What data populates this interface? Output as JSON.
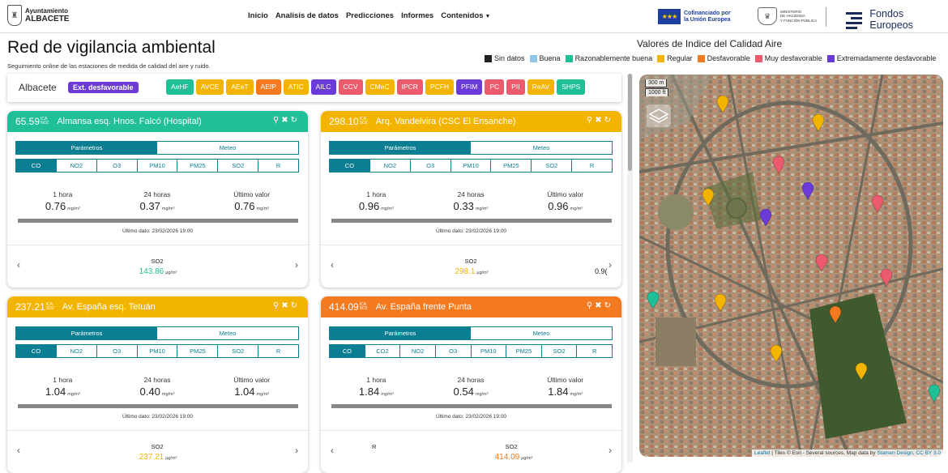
{
  "brand": {
    "line1": "Ayuntamiento",
    "line2": "ALBACETE"
  },
  "nav": [
    "Inicio",
    "Analisis de datos",
    "Predicciones",
    "Informes",
    "Contenidos"
  ],
  "eu": {
    "line1": "Cofinanciado por",
    "line2": "la Unión Europea"
  },
  "ministry": {
    "line1": "MINISTERIO",
    "line2": "DE HACIENDA",
    "line3": "Y FUNCIÓN PÚBLICA"
  },
  "fondos": "Fondos Europeos",
  "page": {
    "title": "Red de vigilancia ambiental",
    "subtitle": "Seguimiento online de las estaciones de medida de calidad del aire y ruido."
  },
  "legend": {
    "title": "Valores de Indice del Calidad Aire",
    "items": [
      {
        "label": "Sin datos",
        "color": "#222222"
      },
      {
        "label": "Buena",
        "color": "#8fc6e8"
      },
      {
        "label": "Razonablemente buena",
        "color": "#1fbf97"
      },
      {
        "label": "Regular",
        "color": "#f3b400"
      },
      {
        "label": "Desfavorable",
        "color": "#f47a20"
      },
      {
        "label": "Muy desfavorable",
        "color": "#ec5a6e"
      },
      {
        "label": "Extremadamente desfavorable",
        "color": "#6a3bd8"
      }
    ]
  },
  "station_bar": {
    "city": "Albacete",
    "badge": "Ext. desfavorable",
    "codes": [
      {
        "code": "AeHF",
        "color": "#1fbf97"
      },
      {
        "code": "AVCE",
        "color": "#f3b400"
      },
      {
        "code": "AEeT",
        "color": "#f3b400"
      },
      {
        "code": "AEfP",
        "color": "#f47a20"
      },
      {
        "code": "ATIC",
        "color": "#f3b400"
      },
      {
        "code": "AILC",
        "color": "#6a3bd8"
      },
      {
        "code": "CCV",
        "color": "#ec5a6e"
      },
      {
        "code": "CMeC",
        "color": "#f3b400"
      },
      {
        "code": "IPCR",
        "color": "#ec5a6e"
      },
      {
        "code": "PCFH",
        "color": "#f3b400"
      },
      {
        "code": "PFIM",
        "color": "#6a3bd8"
      },
      {
        "code": "PC",
        "color": "#ec5a6e"
      },
      {
        "code": "PII",
        "color": "#ec5a6e"
      },
      {
        "code": "ReAV",
        "color": "#f3b400"
      },
      {
        "code": "SHPS",
        "color": "#1fbf97"
      }
    ]
  },
  "ica_label": {
    "top": "ICA",
    "bottom": "NO2"
  },
  "ica_label_so2": {
    "top": "ICA",
    "bottom": "SO2"
  },
  "tabs": {
    "params": "Parámetros",
    "meteo": "Meteo"
  },
  "reading_labels": {
    "h1": "1 hora",
    "h24": "24 horas",
    "last": "Último valor"
  },
  "unit": "mg/m³",
  "unit_ug": "µg/m³",
  "cards": [
    {
      "value": "65.59",
      "ica_bottom": "NO2",
      "name": "Almansa esq. Hnos. Falcó (Hospital)",
      "color": "#1fbf97",
      "params": [
        "CO",
        "NO2",
        "O3",
        "PM10",
        "PM25",
        "SO2",
        "R"
      ],
      "h1": "0.76",
      "h24": "0.37",
      "last": "0.76",
      "last_date": "Último dato: 23/02/2026 19:00",
      "foot_label": "SO2",
      "foot_value": "143.86",
      "foot_color": "#1fbf97",
      "foot_extra": ""
    },
    {
      "value": "298.10",
      "ica_bottom": "SO2",
      "name": "Arq. Vandelvira (CSC El Ensanche)",
      "color": "#f3b400",
      "params": [
        "CO",
        "NO2",
        "O3",
        "PM10",
        "PM25",
        "SO2",
        "R"
      ],
      "h1": "0.96",
      "h24": "0.33",
      "last": "0.96",
      "last_date": "Último dato: 23/02/2026 19:00",
      "foot_label": "SO2",
      "foot_value": "298.1",
      "foot_color": "#f3b400",
      "foot_extra": "0.9("
    },
    {
      "value": "237.21",
      "ica_bottom": "SO2",
      "name": "Av. España esq. Tetuán",
      "color": "#f3b400",
      "params": [
        "CO",
        "NO2",
        "O3",
        "PM10",
        "PM25",
        "SO2",
        "R"
      ],
      "h1": "1.04",
      "h24": "0.40",
      "last": "1.04",
      "last_date": "Último dato: 23/02/2026 19:00",
      "foot_label": "SO2",
      "foot_value": "237.21",
      "foot_color": "#f3b400",
      "foot_extra": ""
    },
    {
      "value": "414.09",
      "ica_bottom": "SO2",
      "name": "Av. España frente Punta",
      "color": "#f47a20",
      "params": [
        "CO",
        "CO2",
        "NO2",
        "O3",
        "PM10",
        "PM25",
        "SO2",
        "R"
      ],
      "h1": "1.84",
      "h24": "0.54",
      "last": "1.84",
      "last_date": "Último dato: 23/02/2026 19:00",
      "foot_label": "SO2",
      "foot_value": "414.09",
      "foot_color": "#f47a20",
      "foot_extra": "R"
    }
  ],
  "map": {
    "scale_m": "300 m",
    "scale_ft": "1000 ft",
    "attribution_leaflet": "Leaflet",
    "attribution_rest": " | Tiles © Esri - Several sources, Map data by ",
    "attribution_stamen": "Stamen Design, CC BY 3.0",
    "pins": [
      {
        "color": "#f3b400"
      },
      {
        "color": "#f3b400"
      },
      {
        "color": "#ec5a6e"
      },
      {
        "color": "#f3b400"
      },
      {
        "color": "#6a3bd8"
      },
      {
        "color": "#ec5a6e"
      },
      {
        "color": "#6a3bd8"
      },
      {
        "color": "#ec5a6e"
      },
      {
        "color": "#ec5a6e"
      },
      {
        "color": "#1fbf97"
      },
      {
        "color": "#f3b400"
      },
      {
        "color": "#f47a20"
      },
      {
        "color": "#f3b400"
      },
      {
        "color": "#f3b400"
      },
      {
        "color": "#1fbf97"
      }
    ]
  }
}
